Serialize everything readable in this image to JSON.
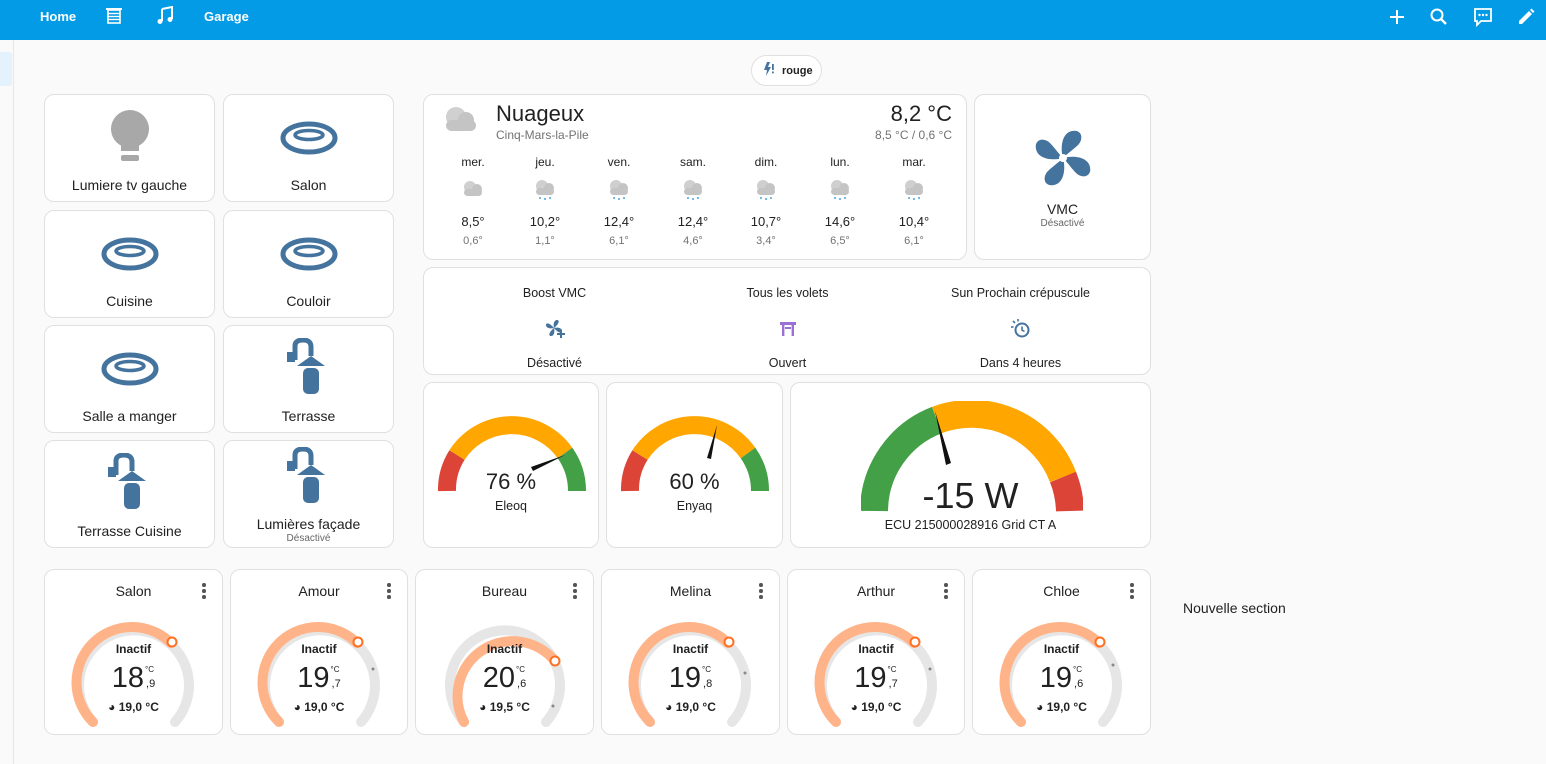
{
  "colors": {
    "topbar": "#039be5",
    "icon_blue": "#44739e",
    "bulb_off": "#a8a8a8",
    "gauge_green": "#43a047",
    "gauge_orange": "#ffa600",
    "gauge_red": "#db4437",
    "thermo_arc": "#ffb389",
    "thermo_handle": "#ff6f22"
  },
  "topbar": {
    "tabs": [
      {
        "label": "Home",
        "icon": null
      },
      {
        "label": "",
        "icon": "blinds-icon"
      },
      {
        "label": "",
        "icon": "music-note-icon"
      },
      {
        "label": "Garage",
        "icon": null
      }
    ],
    "actions": [
      "plus-icon",
      "search-icon",
      "assist-icon",
      "pencil-icon"
    ]
  },
  "badge": {
    "label": "rouge",
    "icon": "flash-alert-icon"
  },
  "lights": [
    {
      "name": "Lumiere tv gauche",
      "icon": "lightbulb-icon",
      "state": ""
    },
    {
      "name": "Salon",
      "icon": "ceiling-light-icon",
      "state": ""
    },
    {
      "name": "Cuisine",
      "icon": "ceiling-light-icon",
      "state": ""
    },
    {
      "name": "Couloir",
      "icon": "ceiling-light-icon",
      "state": ""
    },
    {
      "name": "Salle a manger",
      "icon": "ceiling-light-icon",
      "state": ""
    },
    {
      "name": "Terrasse",
      "icon": "outdoor-lamp-icon",
      "state": ""
    },
    {
      "name": "Terrasse Cuisine",
      "icon": "outdoor-lamp-icon",
      "state": ""
    },
    {
      "name": "Lumières façade",
      "icon": "outdoor-lamp-icon",
      "state": "Désactivé"
    }
  ],
  "weather": {
    "condition": "Nuageux",
    "location": "Cinq-Mars-la-Pile",
    "temperature": "8,2 °C",
    "range": "8,5 °C / 0,6 °C",
    "forecast": [
      {
        "day": "mer.",
        "high": "8,5°",
        "low": "0,6°",
        "icon": "cloudy-icon"
      },
      {
        "day": "jeu.",
        "high": "10,2°",
        "low": "1,1°",
        "icon": "rainy-icon"
      },
      {
        "day": "ven.",
        "high": "12,4°",
        "low": "6,1°",
        "icon": "rainy-icon"
      },
      {
        "day": "sam.",
        "high": "12,4°",
        "low": "4,6°",
        "icon": "rainy-icon"
      },
      {
        "day": "dim.",
        "high": "10,7°",
        "low": "3,4°",
        "icon": "rainy-icon"
      },
      {
        "day": "lun.",
        "high": "14,6°",
        "low": "6,5°",
        "icon": "rainy-icon"
      },
      {
        "day": "mar.",
        "high": "10,4°",
        "low": "6,1°",
        "icon": "rainy-icon"
      }
    ]
  },
  "vmc": {
    "name": "VMC",
    "state": "Désactivé",
    "icon": "fan-icon"
  },
  "buttons": [
    {
      "title": "Boost VMC",
      "state": "Désactivé",
      "icon": "fan-plus-icon"
    },
    {
      "title": "Tous les volets",
      "state": "Ouvert",
      "icon": "window-shutter-open-icon"
    },
    {
      "title": "Sun Prochain crépuscule",
      "state": "Dans 4 heures",
      "icon": "sun-clock-icon"
    }
  ],
  "gauges": [
    {
      "name": "Eleoq",
      "value": 76,
      "display": "76 %"
    },
    {
      "name": "Enyaq",
      "value": 60,
      "display": "60 %"
    }
  ],
  "power_gauge": {
    "name": "ECU 215000028916 Grid CT A",
    "display": "-15 W"
  },
  "thermostats": [
    {
      "name": "Salon",
      "state": "Inactif",
      "temp_int": "18",
      "temp_dec": ",9",
      "unit": "°C",
      "target": "19,0 °C"
    },
    {
      "name": "Amour",
      "state": "Inactif",
      "temp_int": "19",
      "temp_dec": ",7",
      "unit": "°C",
      "target": "19,0 °C"
    },
    {
      "name": "Bureau",
      "state": "Inactif",
      "temp_int": "20",
      "temp_dec": ",6",
      "unit": "°C",
      "target": "19,5 °C"
    },
    {
      "name": "Melina",
      "state": "Inactif",
      "temp_int": "19",
      "temp_dec": ",8",
      "unit": "°C",
      "target": "19,0 °C"
    },
    {
      "name": "Arthur",
      "state": "Inactif",
      "temp_int": "19",
      "temp_dec": ",7",
      "unit": "°C",
      "target": "19,0 °C"
    },
    {
      "name": "Chloe",
      "state": "Inactif",
      "temp_int": "19",
      "temp_dec": ",6",
      "unit": "°C",
      "target": "19,0 °C"
    }
  ],
  "new_section": "Nouvelle section"
}
